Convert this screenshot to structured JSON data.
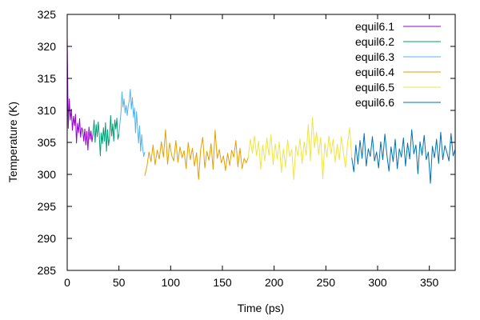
{
  "chart_data": {
    "type": "line",
    "title": "",
    "xlabel": "Time (ps)",
    "ylabel": "Temperature (K)",
    "xlim": [
      0,
      375
    ],
    "ylim": [
      285,
      325
    ],
    "xticks": [
      0,
      50,
      100,
      150,
      200,
      250,
      300,
      350
    ],
    "yticks": [
      285,
      290,
      295,
      300,
      305,
      310,
      315,
      320,
      325
    ],
    "grid": false,
    "legend_position": "top-right",
    "series": [
      {
        "name": "equil6.1",
        "color": "#9400d3",
        "x": [
          0,
          1,
          2,
          3,
          4,
          5,
          6,
          7,
          8,
          9,
          10,
          11,
          12,
          13,
          14,
          15,
          16,
          17,
          18,
          19,
          20,
          21,
          22,
          23,
          24,
          25
        ],
        "y": [
          321.5,
          307.2,
          311.8,
          308.5,
          310.2,
          306.9,
          309.1,
          307.6,
          309.4,
          304.9,
          308.0,
          306.5,
          308.7,
          305.8,
          307.3,
          306.9,
          305.2,
          307.1,
          304.6,
          306.7,
          303.8,
          307.4,
          305.5,
          306.8,
          305.1,
          306.3
        ]
      },
      {
        "name": "equil6.2",
        "color": "#009e73",
        "x": [
          25,
          26,
          27,
          28,
          29,
          30,
          31,
          32,
          33,
          34,
          35,
          36,
          37,
          38,
          39,
          40,
          41,
          42,
          43,
          44,
          45,
          46,
          47,
          48,
          49,
          50
        ],
        "y": [
          306.3,
          308.5,
          305.0,
          307.8,
          305.9,
          308.2,
          306.1,
          302.9,
          306.5,
          304.8,
          307.3,
          305.2,
          308.1,
          303.6,
          307.0,
          304.5,
          305.8,
          309.2,
          306.0,
          307.9,
          305.2,
          308.5,
          307.1,
          308.8,
          305.5,
          306.3
        ]
      },
      {
        "name": "equil6.3",
        "color": "#56b4e9",
        "x": [
          50,
          51,
          52,
          53,
          54,
          55,
          56,
          57,
          58,
          59,
          60,
          61,
          62,
          63,
          64,
          65,
          66,
          67,
          68,
          69,
          70,
          71,
          72,
          73,
          74,
          75
        ],
        "y": [
          306.3,
          308.1,
          309.8,
          312.9,
          310.5,
          311.8,
          309.6,
          310.8,
          309.2,
          310.7,
          311.5,
          313.3,
          310.2,
          312.0,
          308.9,
          310.4,
          306.5,
          309.8,
          307.4,
          304.9,
          307.6,
          303.6,
          306.2,
          304.1,
          302.8,
          303.5
        ]
      },
      {
        "name": "equil6.4",
        "color": "#e69f00",
        "x": [
          75,
          77,
          79,
          81,
          83,
          85,
          87,
          89,
          91,
          93,
          95,
          97,
          99,
          101,
          103,
          105,
          107,
          109,
          111,
          113,
          115,
          117,
          119,
          121,
          123,
          125,
          127,
          129,
          131,
          133,
          135,
          137,
          139,
          141,
          143,
          145,
          147,
          149,
          151,
          153,
          155,
          157,
          159,
          161,
          163,
          165,
          167,
          169,
          171,
          173,
          175
        ],
        "y": [
          299.8,
          301.2,
          303.5,
          302.0,
          304.6,
          301.5,
          303.8,
          302.4,
          305.1,
          302.7,
          307.0,
          301.6,
          304.9,
          303.0,
          302.1,
          305.3,
          301.9,
          304.3,
          302.6,
          303.7,
          300.9,
          305.0,
          302.3,
          304.1,
          301.3,
          303.4,
          299.2,
          303.9,
          305.8,
          301.0,
          303.6,
          302.2,
          304.8,
          300.8,
          306.9,
          302.5,
          303.9,
          301.8,
          302.9,
          300.6,
          303.3,
          301.4,
          303.8,
          302.7,
          305.3,
          301.2,
          304.1,
          300.9,
          302.5,
          301.8,
          302.6
        ]
      },
      {
        "name": "equil6.5",
        "color": "#f0e442",
        "x": [
          175,
          177,
          179,
          181,
          183,
          185,
          187,
          189,
          191,
          193,
          195,
          197,
          199,
          201,
          203,
          205,
          207,
          209,
          211,
          213,
          215,
          217,
          219,
          221,
          223,
          225,
          227,
          229,
          231,
          233,
          235,
          237,
          239,
          241,
          243,
          245,
          247,
          249,
          251,
          253,
          255,
          257,
          259,
          261,
          263,
          265,
          267,
          269,
          271,
          273,
          275
        ],
        "y": [
          302.6,
          305.5,
          303.3,
          306.0,
          302.9,
          305.2,
          300.8,
          304.6,
          302.1,
          305.7,
          303.0,
          306.2,
          301.5,
          304.8,
          302.4,
          305.1,
          300.3,
          304.0,
          301.1,
          305.4,
          302.8,
          303.9,
          299.2,
          304.5,
          302.9,
          305.6,
          301.7,
          305.1,
          303.0,
          307.8,
          302.1,
          308.9,
          304.2,
          306.6,
          303.1,
          305.8,
          299.3,
          304.9,
          302.7,
          306.0,
          303.2,
          305.5,
          301.9,
          304.7,
          302.3,
          305.9,
          303.4,
          301.1,
          304.9,
          307.3,
          302.6
        ]
      },
      {
        "name": "equil6.6",
        "color": "#0072b2",
        "x": [
          275,
          277,
          279,
          281,
          283,
          285,
          287,
          289,
          291,
          293,
          295,
          297,
          299,
          301,
          303,
          305,
          307,
          309,
          311,
          313,
          315,
          317,
          319,
          321,
          323,
          325,
          327,
          329,
          331,
          333,
          335,
          337,
          339,
          341,
          343,
          345,
          347,
          349,
          351,
          353,
          355,
          357,
          359,
          361,
          363,
          365,
          367,
          369,
          371,
          373,
          375
        ],
        "y": [
          302.6,
          300.4,
          304.6,
          301.6,
          305.3,
          302.5,
          306.4,
          301.3,
          304.0,
          302.8,
          305.9,
          302.1,
          303.5,
          301.0,
          305.1,
          302.3,
          306.3,
          303.1,
          300.5,
          304.3,
          302.0,
          305.5,
          300.9,
          304.0,
          302.7,
          305.7,
          301.3,
          304.9,
          302.4,
          307.0,
          303.2,
          304.6,
          300.1,
          305.1,
          303.0,
          306.1,
          302.3,
          303.5,
          298.6,
          304.4,
          302.6,
          305.5,
          301.7,
          306.6,
          302.3,
          304.5,
          303.4,
          302.1,
          306.4,
          302.9,
          303.9
        ]
      }
    ]
  }
}
